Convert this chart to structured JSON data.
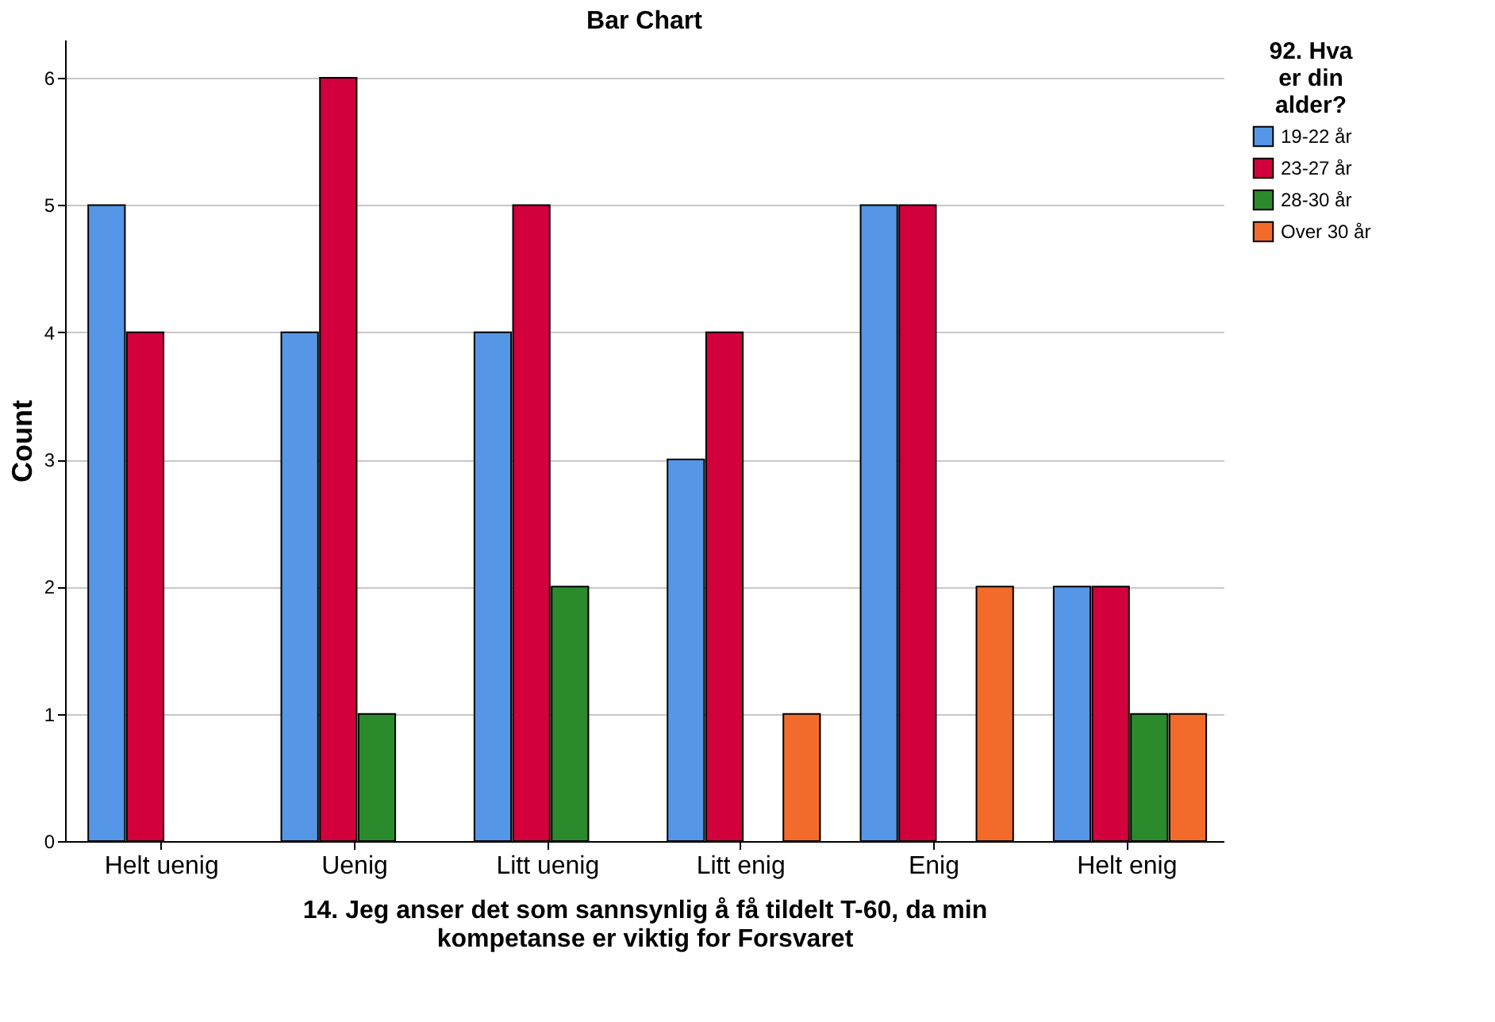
{
  "chart_data": {
    "type": "bar",
    "title": "Bar Chart",
    "xlabel": "14. Jeg anser det som sannsynlig å få tildelt T-60, da min kompetanse er viktig for Forsvaret",
    "ylabel": "Count",
    "legend_title": "92. Hva er din alder?",
    "categories": [
      "Helt uenig",
      "Uenig",
      "Litt uenig",
      "Litt enig",
      "Enig",
      "Helt enig"
    ],
    "series": [
      {
        "name": "19-22 år",
        "color": "#5596e6",
        "values": [
          5,
          4,
          4,
          3,
          5,
          2
        ]
      },
      {
        "name": "23-27 år",
        "color": "#d2003c",
        "values": [
          4,
          6,
          5,
          4,
          5,
          2
        ]
      },
      {
        "name": "28-30 år",
        "color": "#2b8a2b",
        "values": [
          null,
          1,
          2,
          null,
          null,
          1
        ]
      },
      {
        "name": "Over 30 år",
        "color": "#f26b2a",
        "values": [
          null,
          null,
          null,
          1,
          2,
          1
        ]
      }
    ],
    "ylim": [
      0,
      6.3
    ],
    "yticks": [
      0,
      1,
      2,
      3,
      4,
      5,
      6
    ],
    "grid": "y",
    "legend": "top right"
  }
}
